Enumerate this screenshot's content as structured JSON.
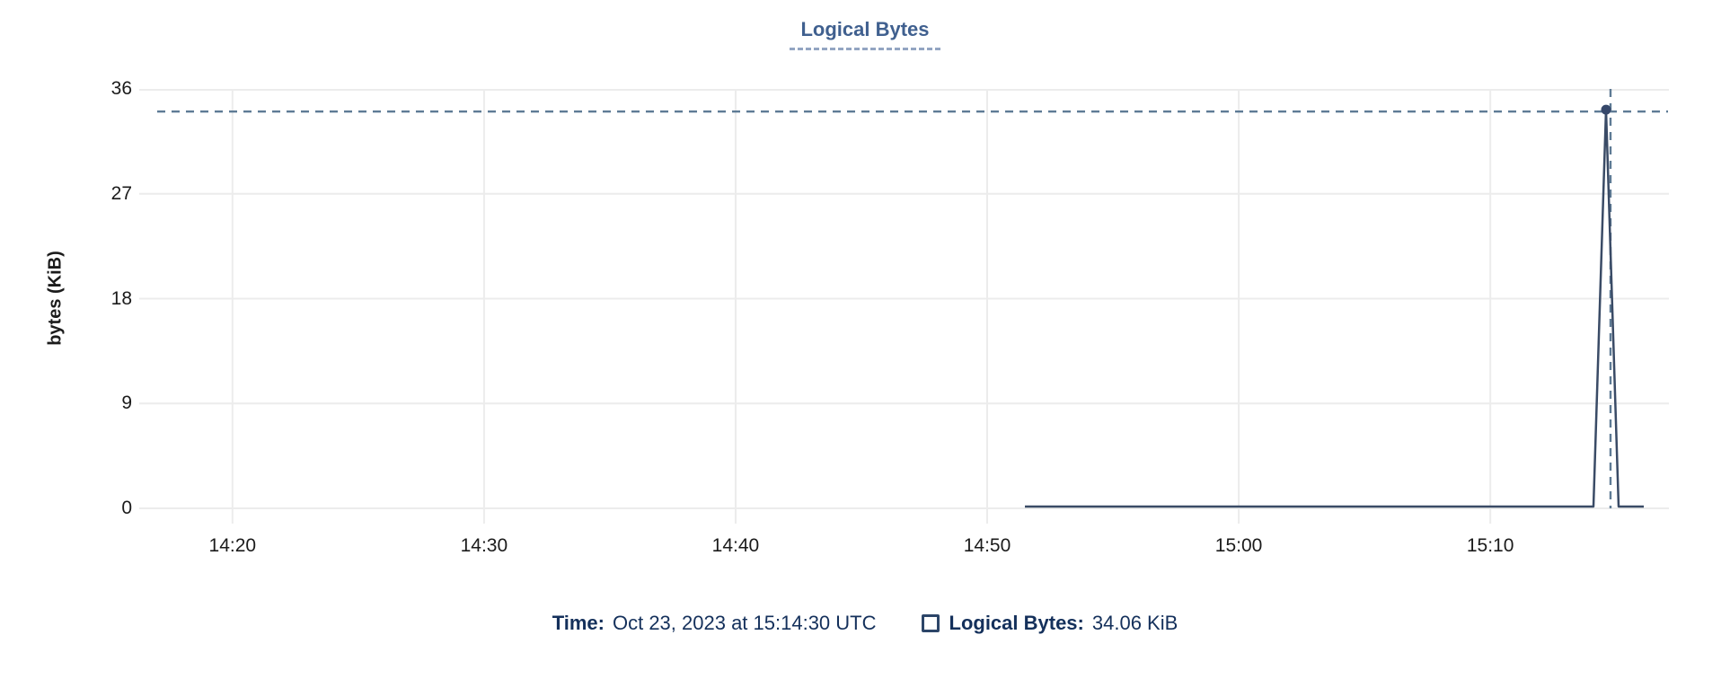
{
  "title": "Logical Bytes",
  "y_axis": {
    "label": "bytes (KiB)",
    "ticks": [
      "36",
      "27",
      "18",
      "9",
      "0"
    ]
  },
  "x_axis": {
    "ticks": [
      "14:20",
      "14:30",
      "14:40",
      "14:50",
      "15:00",
      "15:10"
    ]
  },
  "tooltip": {
    "time_label": "Time:",
    "time_value": "Oct 23, 2023 at 15:14:30 UTC",
    "series_label": "Logical Bytes:",
    "series_value": "34.06 KiB"
  },
  "colors": {
    "title": "#40608F",
    "title_underline": "#93A5C2",
    "grid": "#ECECEC",
    "series_line": "#3A4B66",
    "hover_dot": "#36486A",
    "crosshair": "#5E7B95",
    "tooltip_text": "#14305B",
    "axis_text": "#1B1B1B",
    "legend_marker_border": "#2C4568"
  },
  "chart_data": {
    "type": "line",
    "title": "Logical Bytes",
    "xlabel": "",
    "ylabel": "bytes (KiB)",
    "ylim": [
      0,
      36
    ],
    "y_ticks": [
      36,
      27,
      18,
      9,
      0
    ],
    "x_unit": "minutes after 14:00 UTC",
    "xlim": [
      16.9,
      77.1
    ],
    "x_tick_values": [
      20,
      30,
      40,
      50,
      60,
      70
    ],
    "x_tick_labels": [
      "14:20",
      "14:30",
      "14:40",
      "14:50",
      "15:00",
      "15:10"
    ],
    "grid": true,
    "legend_position": "bottom",
    "series": [
      {
        "name": "Logical Bytes",
        "unit": "KiB",
        "x": [
          51.5,
          74.1,
          74.6,
          75.1,
          76.1
        ],
        "y": [
          0,
          0,
          34.06,
          0,
          0
        ]
      }
    ],
    "hover_point": {
      "x": 74.6,
      "y": 34.06,
      "time": "Oct 23, 2023 at 15:14:30 UTC",
      "value": "34.06 KiB"
    }
  }
}
